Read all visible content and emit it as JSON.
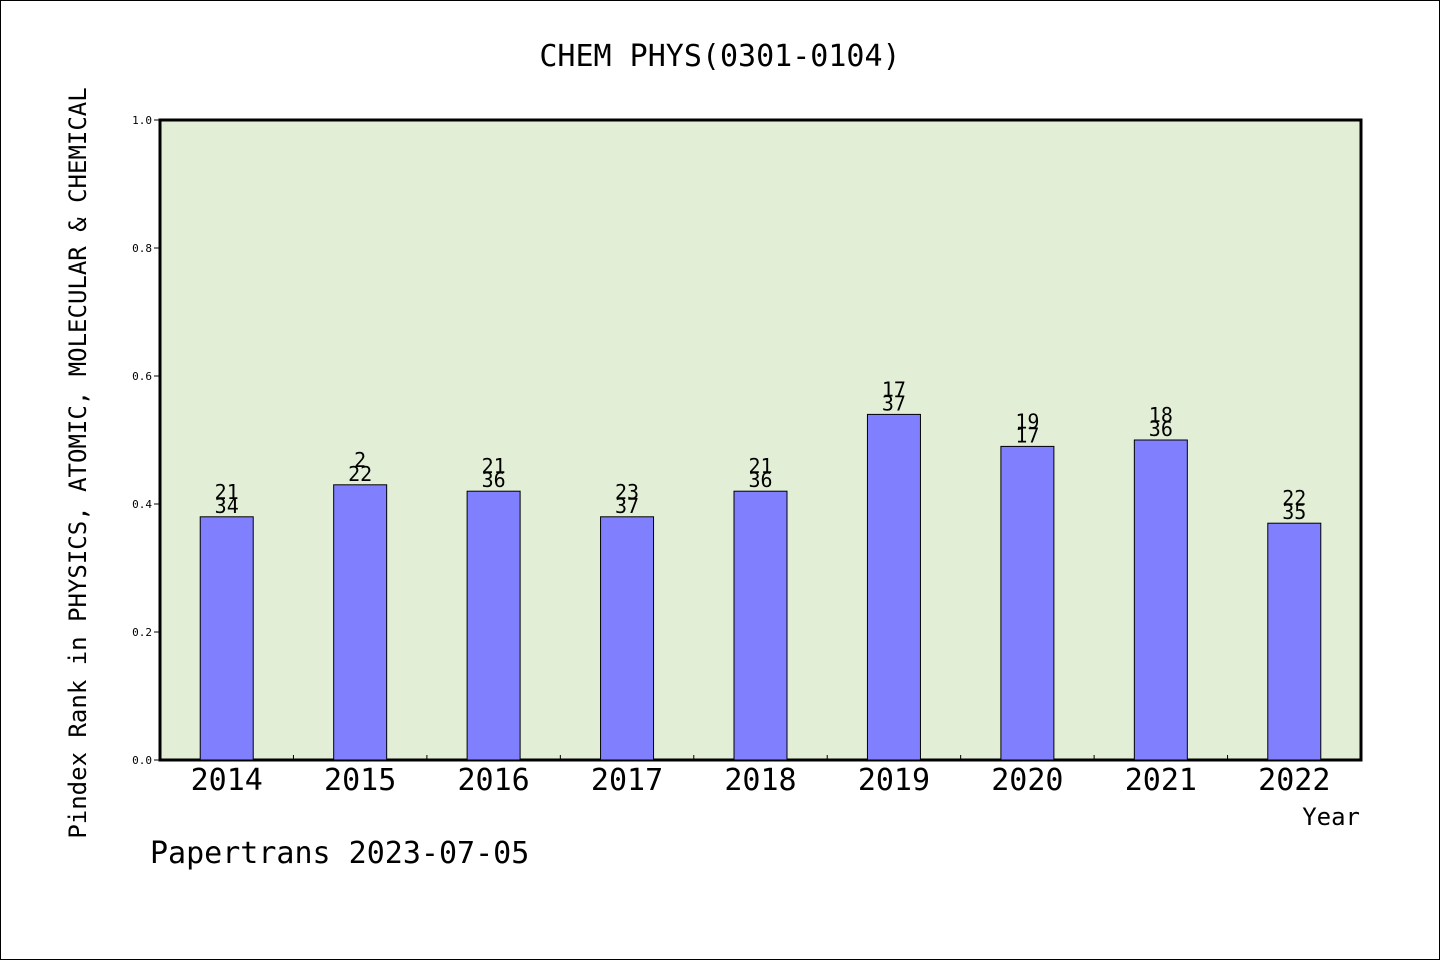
{
  "chart_data": {
    "type": "bar",
    "title": "CHEM PHYS(0301-0104)",
    "xlabel": "Year",
    "ylabel": "Pindex Rank in PHYSICS, ATOMIC, MOLECULAR & CHEMICAL",
    "footer": "Papertrans 2023-07-05",
    "ylim": [
      0,
      1.0
    ],
    "yticks": [
      "0.0",
      "0.2",
      "0.4",
      "0.6",
      "0.8",
      "1.0"
    ],
    "grid": false,
    "categories": [
      "2014",
      "2015",
      "2016",
      "2017",
      "2018",
      "2019",
      "2020",
      "2021",
      "2022"
    ],
    "values": [
      0.38,
      0.43,
      0.42,
      0.38,
      0.42,
      0.54,
      0.49,
      0.5,
      0.37
    ],
    "labels_top": [
      "21",
      "2",
      "21",
      "23",
      "21",
      "17",
      "19",
      "18",
      "22"
    ],
    "labels_bottom": [
      "34",
      "22",
      "36",
      "37",
      "36",
      "37",
      "17",
      "36",
      "35"
    ],
    "colors": {
      "plot_background": "#e2efd6",
      "bar_fill": "#8080ff",
      "bar_stroke": "#000000",
      "axis": "#000000",
      "text": "#000000"
    }
  }
}
